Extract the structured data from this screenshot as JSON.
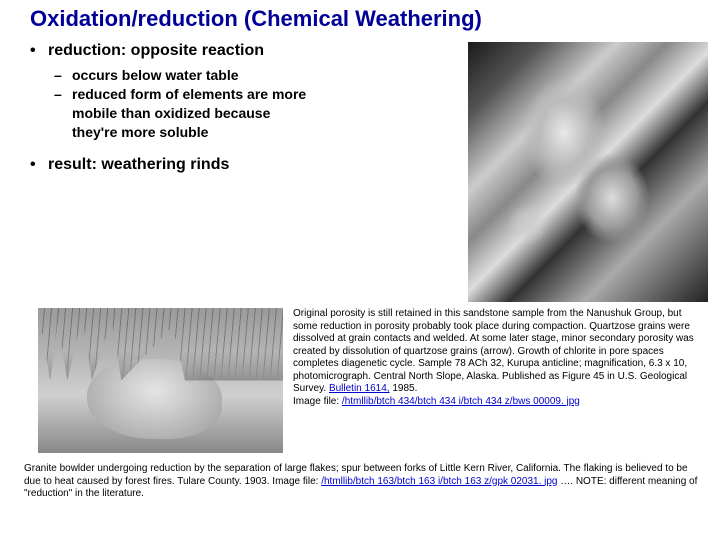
{
  "title": "Oxidation/reduction  (Chemical  Weathering)",
  "bullets": {
    "reduction": "reduction: opposite reaction",
    "sub1": "occurs below water table",
    "sub2": "reduced form of elements are more mobile than oxidized because they're more soluble",
    "result": "result: weathering rinds"
  },
  "caption_right": "Original porosity is still retained in this sandstone sample from the Nanushuk Group, but some reduction in porosity probably took place during compaction. Quartzose grains were dissolved at grain contacts and welded. At some later stage, minor secondary porosity was created by dissolution of quartzose grains (arrow). Growth of chlorite in pore spaces completes diagenetic cycle. Sample 78 ACh 32, Kurupa anticline; magnification, 6.3 x 10, photomicrograph. Central North Slope, Alaska. Published as Figure 45 in U.S. Geological Survey. ",
  "bulletin": "Bulletin 1614,",
  "bulletin_year": " 1985.",
  "imgfile_label": "Image file: ",
  "imgfile_path": "/htmllib/btch 434/btch 434 i/btch 434 z/bws 00009. jpg",
  "bottom_caption_1": "Granite bowlder undergoing reduction by the separation of large flakes; spur between forks of Little Kern River, California. The flaking is believed to be due to heat caused by forest fires. Tulare County. 1903. Image file: ",
  "bottom_imgfile": "/htmllib/btch 163/btch 163 i/btch 163 z/gpk 02031. jpg",
  "bottom_caption_2": " …. NOTE: different meaning of \"reduction\" in the literature."
}
